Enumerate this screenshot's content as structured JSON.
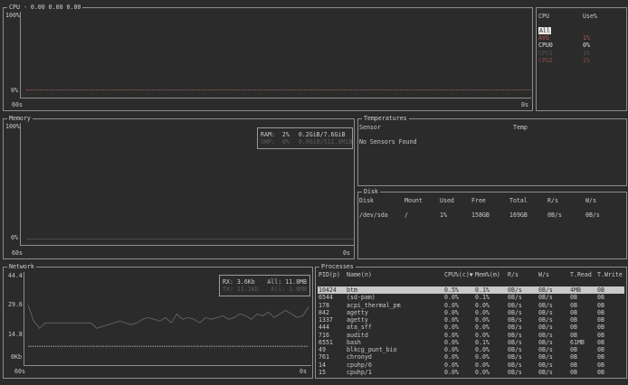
{
  "cpu": {
    "title": "CPU - 0.00 0.00 0.00",
    "y_max": "100%",
    "y_min": "0%",
    "x_start": "60s",
    "x_end": "0s",
    "list_header": [
      "CPU",
      "Use%"
    ],
    "items": [
      {
        "label": "All",
        "use": "",
        "color": "#2b2b2b"
      },
      {
        "label": "AVG",
        "use": "1%",
        "color": "#b05a5a"
      },
      {
        "label": "CPU0",
        "use": "0%",
        "color": "#e0e0e0"
      },
      {
        "label": "CPU1",
        "use": "1%",
        "color": "#555555"
      },
      {
        "label": "CPU2",
        "use": "1%",
        "color": "#8a4a4a"
      }
    ]
  },
  "memory": {
    "title": "Memory",
    "y_max": "100%",
    "y_min": "0%",
    "x_start": "60s",
    "x_end": "0s",
    "ram": {
      "label": "RAM:",
      "pct": "2%",
      "value": "0.2GiB/7.6GiB"
    },
    "swap": {
      "label": "SWP:",
      "pct": "0%",
      "value": "0.0GiB/511.0MiB"
    }
  },
  "temperatures": {
    "title": "Temperatures",
    "headers": [
      "Sensor",
      "Temp"
    ],
    "message": "No Sensors Found"
  },
  "disk": {
    "title": "Disk",
    "headers": [
      "Disk",
      "Mount",
      "Used",
      "Free",
      "Total",
      "R/s",
      "W/s"
    ],
    "rows": [
      [
        "/dev/sda",
        "/",
        "1%",
        "158GB",
        "169GB",
        "0B/s",
        "0B/s"
      ]
    ]
  },
  "network": {
    "title": "Network",
    "y_labels": [
      "44.4",
      "29.6",
      "14.8",
      "0Kb"
    ],
    "x_start": "60s",
    "x_end": "0s",
    "rx": "RX: 3.6Kb",
    "rx_all": "All: 11.8MB",
    "tx": "TX: 11.1Kb",
    "tx_all": "All: 1.6MB",
    "rx_series": [
      27,
      18,
      14,
      17,
      17,
      17,
      17,
      17,
      17,
      17,
      17,
      17,
      14,
      15,
      16,
      17,
      18,
      17,
      16,
      17,
      19,
      20,
      19,
      18,
      20,
      17,
      22,
      19,
      20,
      19,
      17,
      20,
      19,
      20,
      21,
      19,
      20,
      22,
      21,
      19,
      22,
      21,
      23,
      20,
      22,
      24,
      22,
      20,
      21,
      26
    ],
    "tx_series": [
      4,
      4,
      4,
      4,
      4,
      4,
      4,
      4,
      4,
      4,
      4,
      4,
      4,
      4,
      4,
      4,
      4,
      4,
      4,
      4,
      4,
      4,
      4,
      4,
      4,
      4,
      4,
      4,
      4,
      4,
      4,
      4,
      4,
      4,
      4,
      4,
      4,
      4,
      4,
      4,
      4,
      4,
      4,
      4,
      4,
      4,
      4,
      4,
      4,
      4
    ]
  },
  "processes": {
    "title": "Processes",
    "headers": [
      "PID(p)",
      "Name(n)",
      "CPU%(c)▼",
      "Mem%(m)",
      "R/s",
      "W/s",
      "T.Read",
      "T.Write"
    ],
    "rows": [
      [
        "10424",
        "btm",
        "0.5%",
        "0.1%",
        "0B/s",
        "0B/s",
        "4MB",
        "0B"
      ],
      [
        "6544",
        "(sd-pam)",
        "0.0%",
        "0.1%",
        "0B/s",
        "0B/s",
        "0B",
        "0B"
      ],
      [
        "178",
        "acpi_thermal_pm",
        "0.0%",
        "0.0%",
        "0B/s",
        "0B/s",
        "0B",
        "0B"
      ],
      [
        "842",
        "agetty",
        "0.0%",
        "0.0%",
        "0B/s",
        "0B/s",
        "0B",
        "0B"
      ],
      [
        "1337",
        "agetty",
        "0.0%",
        "0.0%",
        "0B/s",
        "0B/s",
        "0B",
        "0B"
      ],
      [
        "444",
        "ata_sff",
        "0.0%",
        "0.0%",
        "0B/s",
        "0B/s",
        "0B",
        "0B"
      ],
      [
        "716",
        "auditd",
        "0.0%",
        "0.0%",
        "0B/s",
        "0B/s",
        "0B",
        "0B"
      ],
      [
        "6551",
        "bash",
        "0.0%",
        "0.1%",
        "0B/s",
        "0B/s",
        "61MB",
        "0B"
      ],
      [
        "49",
        "blkcg_punt_bio",
        "0.0%",
        "0.0%",
        "0B/s",
        "0B/s",
        "0B",
        "0B"
      ],
      [
        "761",
        "chronyd",
        "0.0%",
        "0.0%",
        "0B/s",
        "0B/s",
        "0B",
        "0B"
      ],
      [
        "14",
        "cpuhp/0",
        "0.0%",
        "0.0%",
        "0B/s",
        "0B/s",
        "0B",
        "0B"
      ],
      [
        "15",
        "cpuhp/1",
        "0.0%",
        "0.0%",
        "0B/s",
        "0B/s",
        "0B",
        "0B"
      ]
    ]
  }
}
